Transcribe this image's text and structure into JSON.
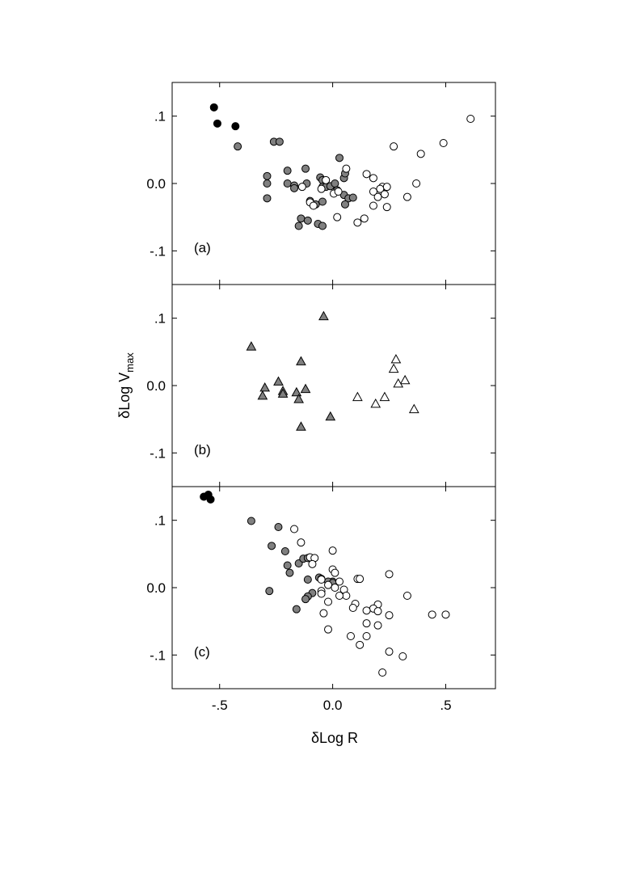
{
  "chart_data": {
    "type": "scatter",
    "xlabel": "δLog R",
    "ylabel": {
      "main": "δLog V",
      "subscript": "max"
    },
    "xlim": [
      -0.71,
      0.72
    ],
    "ylim": [
      -0.15,
      0.15
    ],
    "x_ticks": [
      {
        "value": -0.5,
        "label": "-.5"
      },
      {
        "value": 0.0,
        "label": "0.0"
      },
      {
        "value": 0.5,
        "label": ".5"
      }
    ],
    "y_ticks": [
      {
        "value": 0.1,
        "label": ".1"
      },
      {
        "value": 0.0,
        "label": "0.0"
      },
      {
        "value": -0.1,
        "label": "-.1"
      }
    ],
    "grid": false,
    "colors": {
      "filled": "#000000",
      "shaded": "#808080",
      "open": "#ffffff"
    },
    "panels": [
      {
        "label": "(a)",
        "series": [
          {
            "marker": "circle",
            "fill": "filled",
            "points": [
              [
                -0.525,
                0.113
              ],
              [
                -0.51,
                0.089
              ],
              [
                -0.43,
                0.085
              ]
            ]
          },
          {
            "marker": "circle",
            "fill": "shaded",
            "points": [
              [
                -0.42,
                0.055
              ],
              [
                -0.26,
                0.062
              ],
              [
                -0.235,
                0.062
              ],
              [
                -0.29,
                0.011
              ],
              [
                -0.29,
                0.0
              ],
              [
                -0.29,
                -0.022
              ],
              [
                -0.2,
                0.019
              ],
              [
                -0.12,
                0.022
              ],
              [
                -0.055,
                0.009
              ],
              [
                -0.045,
                0.005
              ],
              [
                -0.2,
                0.0
              ],
              [
                -0.17,
                -0.003
              ],
              [
                -0.115,
                0.0
              ],
              [
                -0.17,
                -0.007
              ],
              [
                -0.1,
                -0.026
              ],
              [
                -0.075,
                -0.031
              ],
              [
                -0.045,
                -0.027
              ],
              [
                -0.045,
                -0.005
              ],
              [
                -0.03,
                -0.005
              ],
              [
                -0.01,
                -0.004
              ],
              [
                0.01,
                0.0
              ],
              [
                0.02,
                -0.01
              ],
              [
                0.05,
                -0.017
              ],
              [
                0.07,
                -0.022
              ],
              [
                0.09,
                -0.021
              ],
              [
                0.05,
                0.008
              ],
              [
                0.055,
                0.015
              ],
              [
                0.03,
                0.038
              ],
              [
                0.055,
                -0.031
              ],
              [
                -0.14,
                -0.052
              ],
              [
                -0.15,
                -0.063
              ],
              [
                -0.11,
                -0.055
              ],
              [
                -0.065,
                -0.06
              ],
              [
                -0.045,
                -0.063
              ]
            ]
          },
          {
            "marker": "circle",
            "fill": "open",
            "points": [
              [
                0.61,
                0.096
              ],
              [
                0.49,
                0.06
              ],
              [
                0.27,
                0.055
              ],
              [
                0.39,
                0.044
              ],
              [
                0.06,
                0.022
              ],
              [
                0.15,
                0.014
              ],
              [
                0.18,
                0.008
              ],
              [
                0.37,
                0.0
              ],
              [
                -0.135,
                -0.005
              ],
              [
                -0.03,
                0.005
              ],
              [
                -0.05,
                -0.008
              ],
              [
                -0.1,
                -0.028
              ],
              [
                -0.085,
                -0.033
              ],
              [
                0.005,
                -0.015
              ],
              [
                0.025,
                -0.012
              ],
              [
                0.22,
                -0.005
              ],
              [
                0.24,
                -0.005
              ],
              [
                0.21,
                -0.008
              ],
              [
                0.18,
                -0.012
              ],
              [
                0.2,
                -0.02
              ],
              [
                0.23,
                -0.016
              ],
              [
                0.33,
                -0.02
              ],
              [
                0.18,
                -0.033
              ],
              [
                0.24,
                -0.035
              ],
              [
                0.02,
                -0.05
              ],
              [
                0.14,
                -0.052
              ],
              [
                0.11,
                -0.058
              ]
            ]
          }
        ]
      },
      {
        "label": "(b)",
        "series": [
          {
            "marker": "triangle",
            "fill": "shaded",
            "points": [
              [
                -0.36,
                0.058
              ],
              [
                -0.04,
                0.103
              ],
              [
                -0.14,
                0.036
              ],
              [
                -0.24,
                0.006
              ],
              [
                -0.3,
                -0.003
              ],
              [
                -0.31,
                -0.015
              ],
              [
                -0.22,
                -0.008
              ],
              [
                -0.22,
                -0.012
              ],
              [
                -0.16,
                -0.01
              ],
              [
                -0.12,
                -0.005
              ],
              [
                -0.15,
                -0.02
              ],
              [
                -0.01,
                -0.046
              ],
              [
                -0.14,
                -0.061
              ]
            ]
          },
          {
            "marker": "triangle",
            "fill": "open",
            "points": [
              [
                0.28,
                0.039
              ],
              [
                0.27,
                0.025
              ],
              [
                0.32,
                0.008
              ],
              [
                0.29,
                0.003
              ],
              [
                0.11,
                -0.017
              ],
              [
                0.23,
                -0.017
              ],
              [
                0.19,
                -0.027
              ],
              [
                0.36,
                -0.035
              ]
            ]
          }
        ]
      },
      {
        "label": "(c)",
        "series": [
          {
            "marker": "circle",
            "fill": "filled",
            "points": [
              [
                -0.57,
                0.135
              ],
              [
                -0.55,
                0.138
              ],
              [
                -0.54,
                0.131
              ]
            ]
          },
          {
            "marker": "circle",
            "fill": "shaded",
            "points": [
              [
                -0.36,
                0.099
              ],
              [
                -0.24,
                0.09
              ],
              [
                -0.21,
                0.054
              ],
              [
                -0.27,
                0.062
              ],
              [
                -0.2,
                0.033
              ],
              [
                -0.19,
                0.022
              ],
              [
                -0.15,
                0.036
              ],
              [
                -0.13,
                0.043
              ],
              [
                -0.11,
                0.044
              ],
              [
                -0.11,
                0.012
              ],
              [
                -0.06,
                0.015
              ],
              [
                -0.05,
                0.013
              ],
              [
                0.0,
                0.009
              ],
              [
                -0.02,
                0.009
              ],
              [
                -0.28,
                -0.005
              ],
              [
                -0.09,
                -0.008
              ],
              [
                -0.11,
                -0.013
              ],
              [
                -0.12,
                -0.017
              ],
              [
                -0.16,
                -0.032
              ],
              [
                0.0,
                0.007
              ]
            ]
          },
          {
            "marker": "circle",
            "fill": "open",
            "points": [
              [
                -0.17,
                0.087
              ],
              [
                -0.14,
                0.067
              ],
              [
                0.0,
                0.055
              ],
              [
                -0.1,
                0.045
              ],
              [
                -0.08,
                0.044
              ],
              [
                -0.09,
                0.035
              ],
              [
                0.0,
                0.027
              ],
              [
                0.01,
                0.022
              ],
              [
                0.25,
                0.02
              ],
              [
                -0.05,
                0.012
              ],
              [
                0.11,
                0.013
              ],
              [
                0.12,
                0.013
              ],
              [
                0.03,
                0.009
              ],
              [
                -0.02,
                0.004
              ],
              [
                0.01,
                0.0
              ],
              [
                -0.05,
                -0.005
              ],
              [
                -0.05,
                -0.009
              ],
              [
                0.05,
                -0.003
              ],
              [
                0.06,
                -0.012
              ],
              [
                0.03,
                -0.012
              ],
              [
                -0.02,
                -0.021
              ],
              [
                0.33,
                -0.012
              ],
              [
                0.1,
                -0.024
              ],
              [
                0.09,
                -0.03
              ],
              [
                0.2,
                -0.025
              ],
              [
                0.18,
                -0.031
              ],
              [
                0.2,
                -0.035
              ],
              [
                0.15,
                -0.034
              ],
              [
                0.25,
                -0.041
              ],
              [
                0.44,
                -0.04
              ],
              [
                0.5,
                -0.04
              ],
              [
                -0.04,
                -0.038
              ],
              [
                0.15,
                -0.053
              ],
              [
                0.2,
                -0.056
              ],
              [
                -0.02,
                -0.062
              ],
              [
                0.08,
                -0.072
              ],
              [
                0.15,
                -0.072
              ],
              [
                0.12,
                -0.085
              ],
              [
                0.25,
                -0.095
              ],
              [
                0.31,
                -0.102
              ],
              [
                0.22,
                -0.126
              ]
            ]
          }
        ]
      }
    ]
  }
}
